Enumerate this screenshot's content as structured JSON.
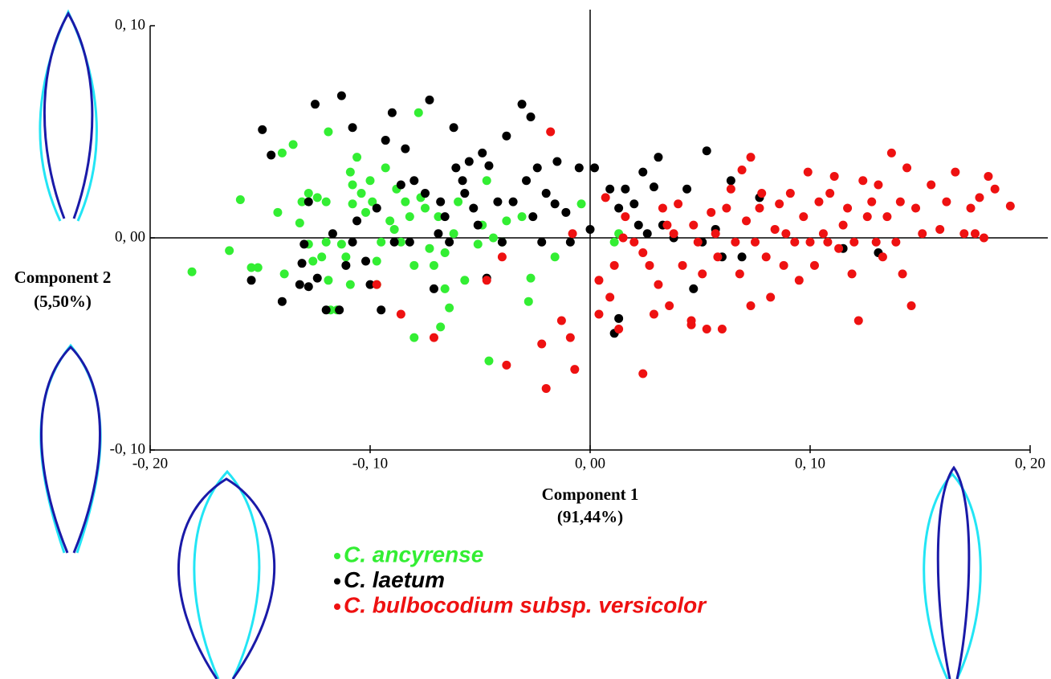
{
  "chart_data": {
    "type": "scatter",
    "xlabel": [
      "Component 1",
      "(91,44%)"
    ],
    "ylabel": [
      "Component 2",
      "(5,50%)"
    ],
    "xlim": [
      -0.2,
      0.2
    ],
    "ylim": [
      -0.1,
      0.1
    ],
    "xticks": [
      {
        "value": -0.2,
        "label": "-0, 20"
      },
      {
        "value": -0.1,
        "label": "-0, 10"
      },
      {
        "value": 0,
        "label": "0, 00"
      },
      {
        "value": 0.1,
        "label": "0, 10"
      },
      {
        "value": 0.2,
        "label": "0, 20"
      }
    ],
    "yticks": [
      {
        "value": 0.1,
        "label": "0, 10"
      },
      {
        "value": 0,
        "label": "0, 00"
      },
      {
        "value": -0.1,
        "label": "-0, 10"
      }
    ],
    "series": [
      {
        "name": "C. ancyrense",
        "color": "#33ee33",
        "x": [
          -0.181,
          -0.164,
          -0.159,
          -0.154,
          -0.151,
          -0.14,
          -0.135,
          -0.142,
          -0.139,
          -0.132,
          -0.131,
          -0.128,
          -0.128,
          -0.126,
          -0.124,
          -0.122,
          -0.12,
          -0.12,
          -0.119,
          -0.118,
          -0.115,
          -0.119,
          -0.113,
          -0.111,
          -0.109,
          -0.108,
          -0.108,
          -0.109,
          -0.106,
          -0.104,
          -0.102,
          -0.1,
          -0.099,
          -0.097,
          -0.097,
          -0.095,
          -0.093,
          -0.091,
          -0.089,
          -0.088,
          -0.086,
          -0.084,
          -0.082,
          -0.08,
          -0.08,
          -0.078,
          -0.077,
          -0.075,
          -0.073,
          -0.071,
          -0.069,
          -0.068,
          -0.066,
          -0.066,
          -0.064,
          -0.062,
          -0.06,
          -0.057,
          -0.051,
          -0.049,
          -0.047,
          -0.046,
          -0.044,
          -0.04,
          -0.038,
          -0.031,
          -0.028,
          -0.027,
          -0.016,
          -0.004,
          0.011,
          0.013
        ],
        "y": [
          -0.016,
          -0.006,
          0.018,
          -0.014,
          -0.014,
          0.04,
          0.044,
          0.012,
          -0.017,
          0.007,
          0.017,
          0.021,
          -0.003,
          -0.011,
          0.019,
          -0.009,
          -0.002,
          0.017,
          -0.02,
          -0.034,
          -0.034,
          0.05,
          -0.003,
          -0.009,
          0.031,
          0.025,
          0.016,
          -0.022,
          0.038,
          0.021,
          0.012,
          0.027,
          0.017,
          -0.011,
          -0.022,
          -0.002,
          0.033,
          0.008,
          0.004,
          0.023,
          -0.002,
          0.017,
          0.01,
          -0.013,
          -0.047,
          0.059,
          0.019,
          0.014,
          -0.005,
          -0.013,
          0.01,
          -0.042,
          -0.024,
          -0.007,
          -0.033,
          0.002,
          0.017,
          -0.02,
          -0.003,
          0.006,
          0.027,
          -0.058,
          0.0,
          -0.002,
          0.008,
          0.01,
          -0.03,
          -0.019,
          -0.009,
          0.016,
          -0.002,
          0.002
        ]
      },
      {
        "name": "C. laetum",
        "color": "#000000",
        "x": [
          -0.149,
          -0.145,
          -0.154,
          -0.14,
          -0.132,
          -0.131,
          -0.13,
          -0.128,
          -0.128,
          -0.125,
          -0.124,
          -0.12,
          -0.117,
          -0.114,
          -0.113,
          -0.111,
          -0.108,
          -0.108,
          -0.106,
          -0.102,
          -0.1,
          -0.097,
          -0.095,
          -0.093,
          -0.09,
          -0.089,
          -0.086,
          -0.084,
          -0.082,
          -0.08,
          -0.075,
          -0.073,
          -0.071,
          -0.069,
          -0.068,
          -0.066,
          -0.064,
          -0.062,
          -0.061,
          -0.058,
          -0.057,
          -0.055,
          -0.053,
          -0.051,
          -0.049,
          -0.047,
          -0.046,
          -0.042,
          -0.04,
          -0.038,
          -0.035,
          -0.031,
          -0.029,
          -0.027,
          -0.026,
          -0.024,
          -0.022,
          -0.02,
          -0.016,
          -0.015,
          -0.011,
          -0.009,
          -0.005,
          0.0,
          0.002,
          0.009,
          0.013,
          0.013,
          0.016,
          0.02,
          0.022,
          0.024,
          0.026,
          0.029,
          0.031,
          0.033,
          0.038,
          0.044,
          0.047,
          0.051,
          0.053,
          0.057,
          0.06,
          0.064,
          0.069,
          0.077,
          0.115,
          0.131,
          0.011
        ],
        "y": [
          0.051,
          0.039,
          -0.02,
          -0.03,
          -0.022,
          -0.012,
          -0.003,
          -0.023,
          0.017,
          0.063,
          -0.019,
          -0.034,
          0.002,
          -0.034,
          0.067,
          -0.013,
          -0.002,
          0.052,
          0.008,
          -0.011,
          -0.022,
          0.014,
          -0.034,
          0.046,
          0.059,
          -0.002,
          0.025,
          0.042,
          -0.002,
          0.027,
          0.021,
          0.065,
          -0.024,
          0.002,
          0.017,
          0.01,
          -0.002,
          0.052,
          0.033,
          0.027,
          0.021,
          0.036,
          0.014,
          0.006,
          0.04,
          -0.019,
          0.034,
          0.017,
          -0.002,
          0.048,
          0.017,
          0.063,
          0.027,
          0.057,
          0.01,
          0.033,
          -0.002,
          0.021,
          0.016,
          0.036,
          0.012,
          -0.002,
          0.033,
          0.004,
          0.033,
          0.023,
          -0.038,
          0.014,
          0.023,
          0.016,
          0.006,
          0.031,
          0.002,
          0.024,
          0.038,
          0.006,
          0.0,
          0.023,
          -0.024,
          -0.002,
          0.041,
          0.004,
          -0.009,
          0.027,
          -0.009,
          0.019,
          -0.005,
          -0.007,
          -0.045
        ]
      },
      {
        "name": "C. bulbocodium subsp. versicolor",
        "color": "#ee1111",
        "x": [
          -0.086,
          -0.071,
          -0.097,
          -0.047,
          -0.038,
          -0.04,
          -0.02,
          -0.022,
          -0.018,
          -0.013,
          -0.009,
          -0.007,
          -0.008,
          0.004,
          0.004,
          0.007,
          0.009,
          0.011,
          0.013,
          0.015,
          0.016,
          0.02,
          0.024,
          0.024,
          0.027,
          0.029,
          0.031,
          0.033,
          0.035,
          0.036,
          0.038,
          0.04,
          0.042,
          0.046,
          0.047,
          0.049,
          0.051,
          0.053,
          0.055,
          0.057,
          0.058,
          0.06,
          0.062,
          0.064,
          0.066,
          0.068,
          0.069,
          0.071,
          0.073,
          0.075,
          0.077,
          0.078,
          0.08,
          0.082,
          0.084,
          0.086,
          0.088,
          0.089,
          0.091,
          0.093,
          0.095,
          0.097,
          0.099,
          0.1,
          0.102,
          0.104,
          0.106,
          0.108,
          0.109,
          0.111,
          0.113,
          0.115,
          0.117,
          0.119,
          0.12,
          0.122,
          0.124,
          0.126,
          0.128,
          0.13,
          0.131,
          0.133,
          0.135,
          0.137,
          0.139,
          0.141,
          0.142,
          0.144,
          0.146,
          0.148,
          0.151,
          0.155,
          0.159,
          0.162,
          0.166,
          0.17,
          0.173,
          0.175,
          0.177,
          0.181,
          0.184,
          0.191,
          0.179,
          0.073,
          0.046
        ],
        "y": [
          -0.036,
          -0.047,
          -0.022,
          -0.02,
          -0.06,
          -0.009,
          -0.071,
          -0.05,
          0.05,
          -0.039,
          -0.047,
          -0.062,
          0.002,
          -0.036,
          -0.02,
          0.019,
          -0.028,
          -0.013,
          -0.043,
          0.0,
          0.01,
          -0.002,
          -0.007,
          -0.064,
          -0.013,
          -0.036,
          -0.022,
          0.014,
          0.006,
          -0.032,
          0.002,
          0.016,
          -0.013,
          -0.039,
          0.006,
          -0.002,
          -0.017,
          -0.043,
          0.012,
          0.002,
          -0.009,
          -0.043,
          0.014,
          0.023,
          -0.002,
          -0.017,
          0.032,
          0.008,
          -0.032,
          -0.002,
          0.014,
          0.021,
          -0.009,
          -0.028,
          0.004,
          0.016,
          -0.013,
          0.002,
          0.021,
          -0.002,
          -0.02,
          0.01,
          0.031,
          -0.002,
          -0.013,
          0.017,
          0.002,
          -0.002,
          0.021,
          0.029,
          -0.005,
          0.006,
          0.014,
          -0.017,
          -0.002,
          -0.039,
          0.027,
          0.01,
          0.017,
          -0.002,
          0.025,
          -0.009,
          0.01,
          0.04,
          -0.002,
          0.017,
          -0.017,
          0.033,
          -0.032,
          0.014,
          0.002,
          0.025,
          0.004,
          0.017,
          0.031,
          0.002,
          0.014,
          0.002,
          0.019,
          0.029,
          0.023,
          0.015,
          0.0,
          0.038,
          -0.041
        ]
      }
    ]
  }
}
